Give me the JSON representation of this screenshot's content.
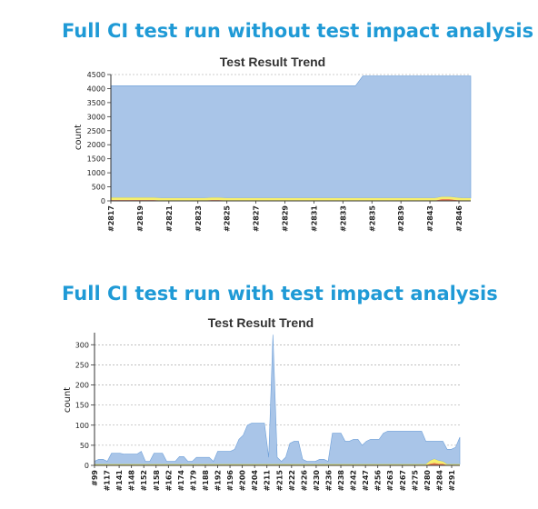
{
  "headings": {
    "top": {
      "pre": "Full CI test run ",
      "strong": "without",
      "post": " test impact analysis"
    },
    "bottom": {
      "pre": "Full CI test run ",
      "strong": "with",
      "post": " test impact analysis"
    }
  },
  "colors": {
    "pass_fill": "#a9c5e8",
    "pass_stroke": "#6d9fd8",
    "skip_fill": "#f7ef6c",
    "fail_fill": "#e8754a",
    "grid": "#9a9a9a",
    "axis": "#333333"
  },
  "chart_data": [
    {
      "type": "area",
      "title": "Test Result Trend",
      "ylabel": "count",
      "xlabel": "",
      "ylim": [
        0,
        4500
      ],
      "yticks": [
        0,
        500,
        1000,
        1500,
        2000,
        2500,
        3000,
        3500,
        4000,
        4500
      ],
      "grid": true,
      "x_tick_labels": [
        "#2817",
        "#2819",
        "#2821",
        "#2823",
        "#2825",
        "#2827",
        "#2829",
        "#2831",
        "#2833",
        "#2835",
        "#2839",
        "#2843",
        "#2846"
      ],
      "series": [
        {
          "name": "",
          "layer": "pass",
          "values": [
            4100,
            4100,
            4100,
            4100,
            4100,
            4100,
            4100,
            4100,
            4100,
            4100,
            4100,
            4100,
            4100,
            4100,
            4100,
            4100,
            4100,
            4100,
            4100,
            4100,
            4100,
            4100,
            4100,
            4100,
            4100,
            4100,
            4100,
            4100,
            4100,
            4100,
            4100,
            4100,
            4100,
            4100,
            4100,
            4450,
            4450,
            4450,
            4450,
            4450,
            4450,
            4450,
            4450,
            4450,
            4450,
            4450,
            4450,
            4450,
            4450,
            4450,
            4450
          ]
        },
        {
          "name": "",
          "layer": "skip",
          "values": [
            90,
            90,
            90,
            90,
            90,
            90,
            90,
            90,
            90,
            90,
            90,
            90,
            90,
            90,
            90,
            90,
            90,
            90,
            90,
            90,
            90,
            90,
            90,
            90,
            90,
            90,
            90,
            90,
            90,
            90,
            90,
            90,
            90,
            90,
            90,
            90,
            90,
            90,
            90,
            90,
            90,
            90,
            90,
            90,
            90,
            90,
            90,
            90,
            90,
            90,
            90
          ]
        },
        {
          "name": "",
          "layer": "fail",
          "values": [
            30,
            30,
            30,
            30,
            30,
            30,
            30,
            10,
            10,
            10,
            10,
            10,
            10,
            10,
            30,
            30,
            10,
            10,
            10,
            10,
            10,
            10,
            10,
            10,
            10,
            10,
            10,
            10,
            10,
            10,
            10,
            10,
            10,
            10,
            10,
            10,
            10,
            10,
            10,
            10,
            10,
            10,
            10,
            10,
            10,
            10,
            60,
            60,
            30,
            10,
            10
          ]
        }
      ]
    },
    {
      "type": "area",
      "title": "Test Result Trend",
      "ylabel": "count",
      "xlabel": "",
      "ylim": [
        0,
        330
      ],
      "yticks": [
        0,
        50,
        100,
        150,
        200,
        250,
        300
      ],
      "grid": true,
      "x_tick_labels": [
        "#99",
        "#117",
        "#141",
        "#148",
        "#152",
        "#158",
        "#162",
        "#174",
        "#179",
        "#188",
        "#192",
        "#196",
        "#200",
        "#204",
        "#211",
        "#215",
        "#222",
        "#226",
        "#230",
        "#236",
        "#238",
        "#242",
        "#247",
        "#256",
        "#263",
        "#267",
        "#275",
        "#280",
        "#284",
        "#291"
      ],
      "series": [
        {
          "name": "",
          "layer": "pass",
          "values": [
            10,
            15,
            15,
            10,
            30,
            30,
            30,
            28,
            28,
            28,
            28,
            35,
            10,
            10,
            30,
            30,
            30,
            10,
            10,
            10,
            22,
            22,
            10,
            10,
            20,
            20,
            20,
            20,
            10,
            35,
            35,
            35,
            35,
            40,
            65,
            75,
            100,
            105,
            105,
            105,
            105,
            20,
            325,
            20,
            10,
            20,
            55,
            60,
            60,
            15,
            10,
            10,
            10,
            15,
            15,
            10,
            80,
            80,
            80,
            60,
            60,
            65,
            65,
            50,
            60,
            65,
            65,
            65,
            80,
            85,
            85,
            85,
            85,
            85,
            85,
            85,
            85,
            85,
            60,
            60,
            60,
            60,
            60,
            40,
            40,
            45,
            70
          ]
        },
        {
          "name": "",
          "layer": "skip",
          "values": [
            3,
            3,
            3,
            3,
            3,
            3,
            3,
            3,
            3,
            3,
            3,
            3,
            3,
            3,
            3,
            3,
            3,
            3,
            3,
            3,
            3,
            3,
            3,
            3,
            3,
            3,
            3,
            3,
            3,
            3,
            3,
            3,
            3,
            3,
            3,
            3,
            3,
            3,
            3,
            3,
            3,
            3,
            3,
            3,
            3,
            3,
            3,
            3,
            3,
            3,
            3,
            3,
            3,
            3,
            3,
            3,
            3,
            3,
            3,
            3,
            3,
            3,
            3,
            3,
            3,
            3,
            3,
            3,
            3,
            3,
            3,
            3,
            3,
            3,
            3,
            3,
            3,
            3,
            3,
            8,
            10,
            8,
            6,
            3,
            3,
            3,
            3
          ]
        },
        {
          "name": "",
          "layer": "fail",
          "values": [
            0,
            0,
            0,
            0,
            0,
            0,
            0,
            0,
            0,
            0,
            0,
            0,
            0,
            0,
            0,
            0,
            0,
            0,
            0,
            0,
            0,
            0,
            0,
            0,
            0,
            0,
            0,
            0,
            0,
            0,
            0,
            0,
            0,
            0,
            0,
            0,
            0,
            0,
            0,
            0,
            0,
            0,
            0,
            0,
            0,
            0,
            0,
            0,
            0,
            0,
            0,
            0,
            0,
            0,
            0,
            0,
            0,
            0,
            0,
            0,
            0,
            0,
            0,
            0,
            0,
            0,
            0,
            0,
            0,
            0,
            0,
            0,
            0,
            0,
            0,
            0,
            0,
            0,
            0,
            4,
            6,
            4,
            4,
            0,
            0,
            0,
            0
          ]
        }
      ]
    }
  ]
}
